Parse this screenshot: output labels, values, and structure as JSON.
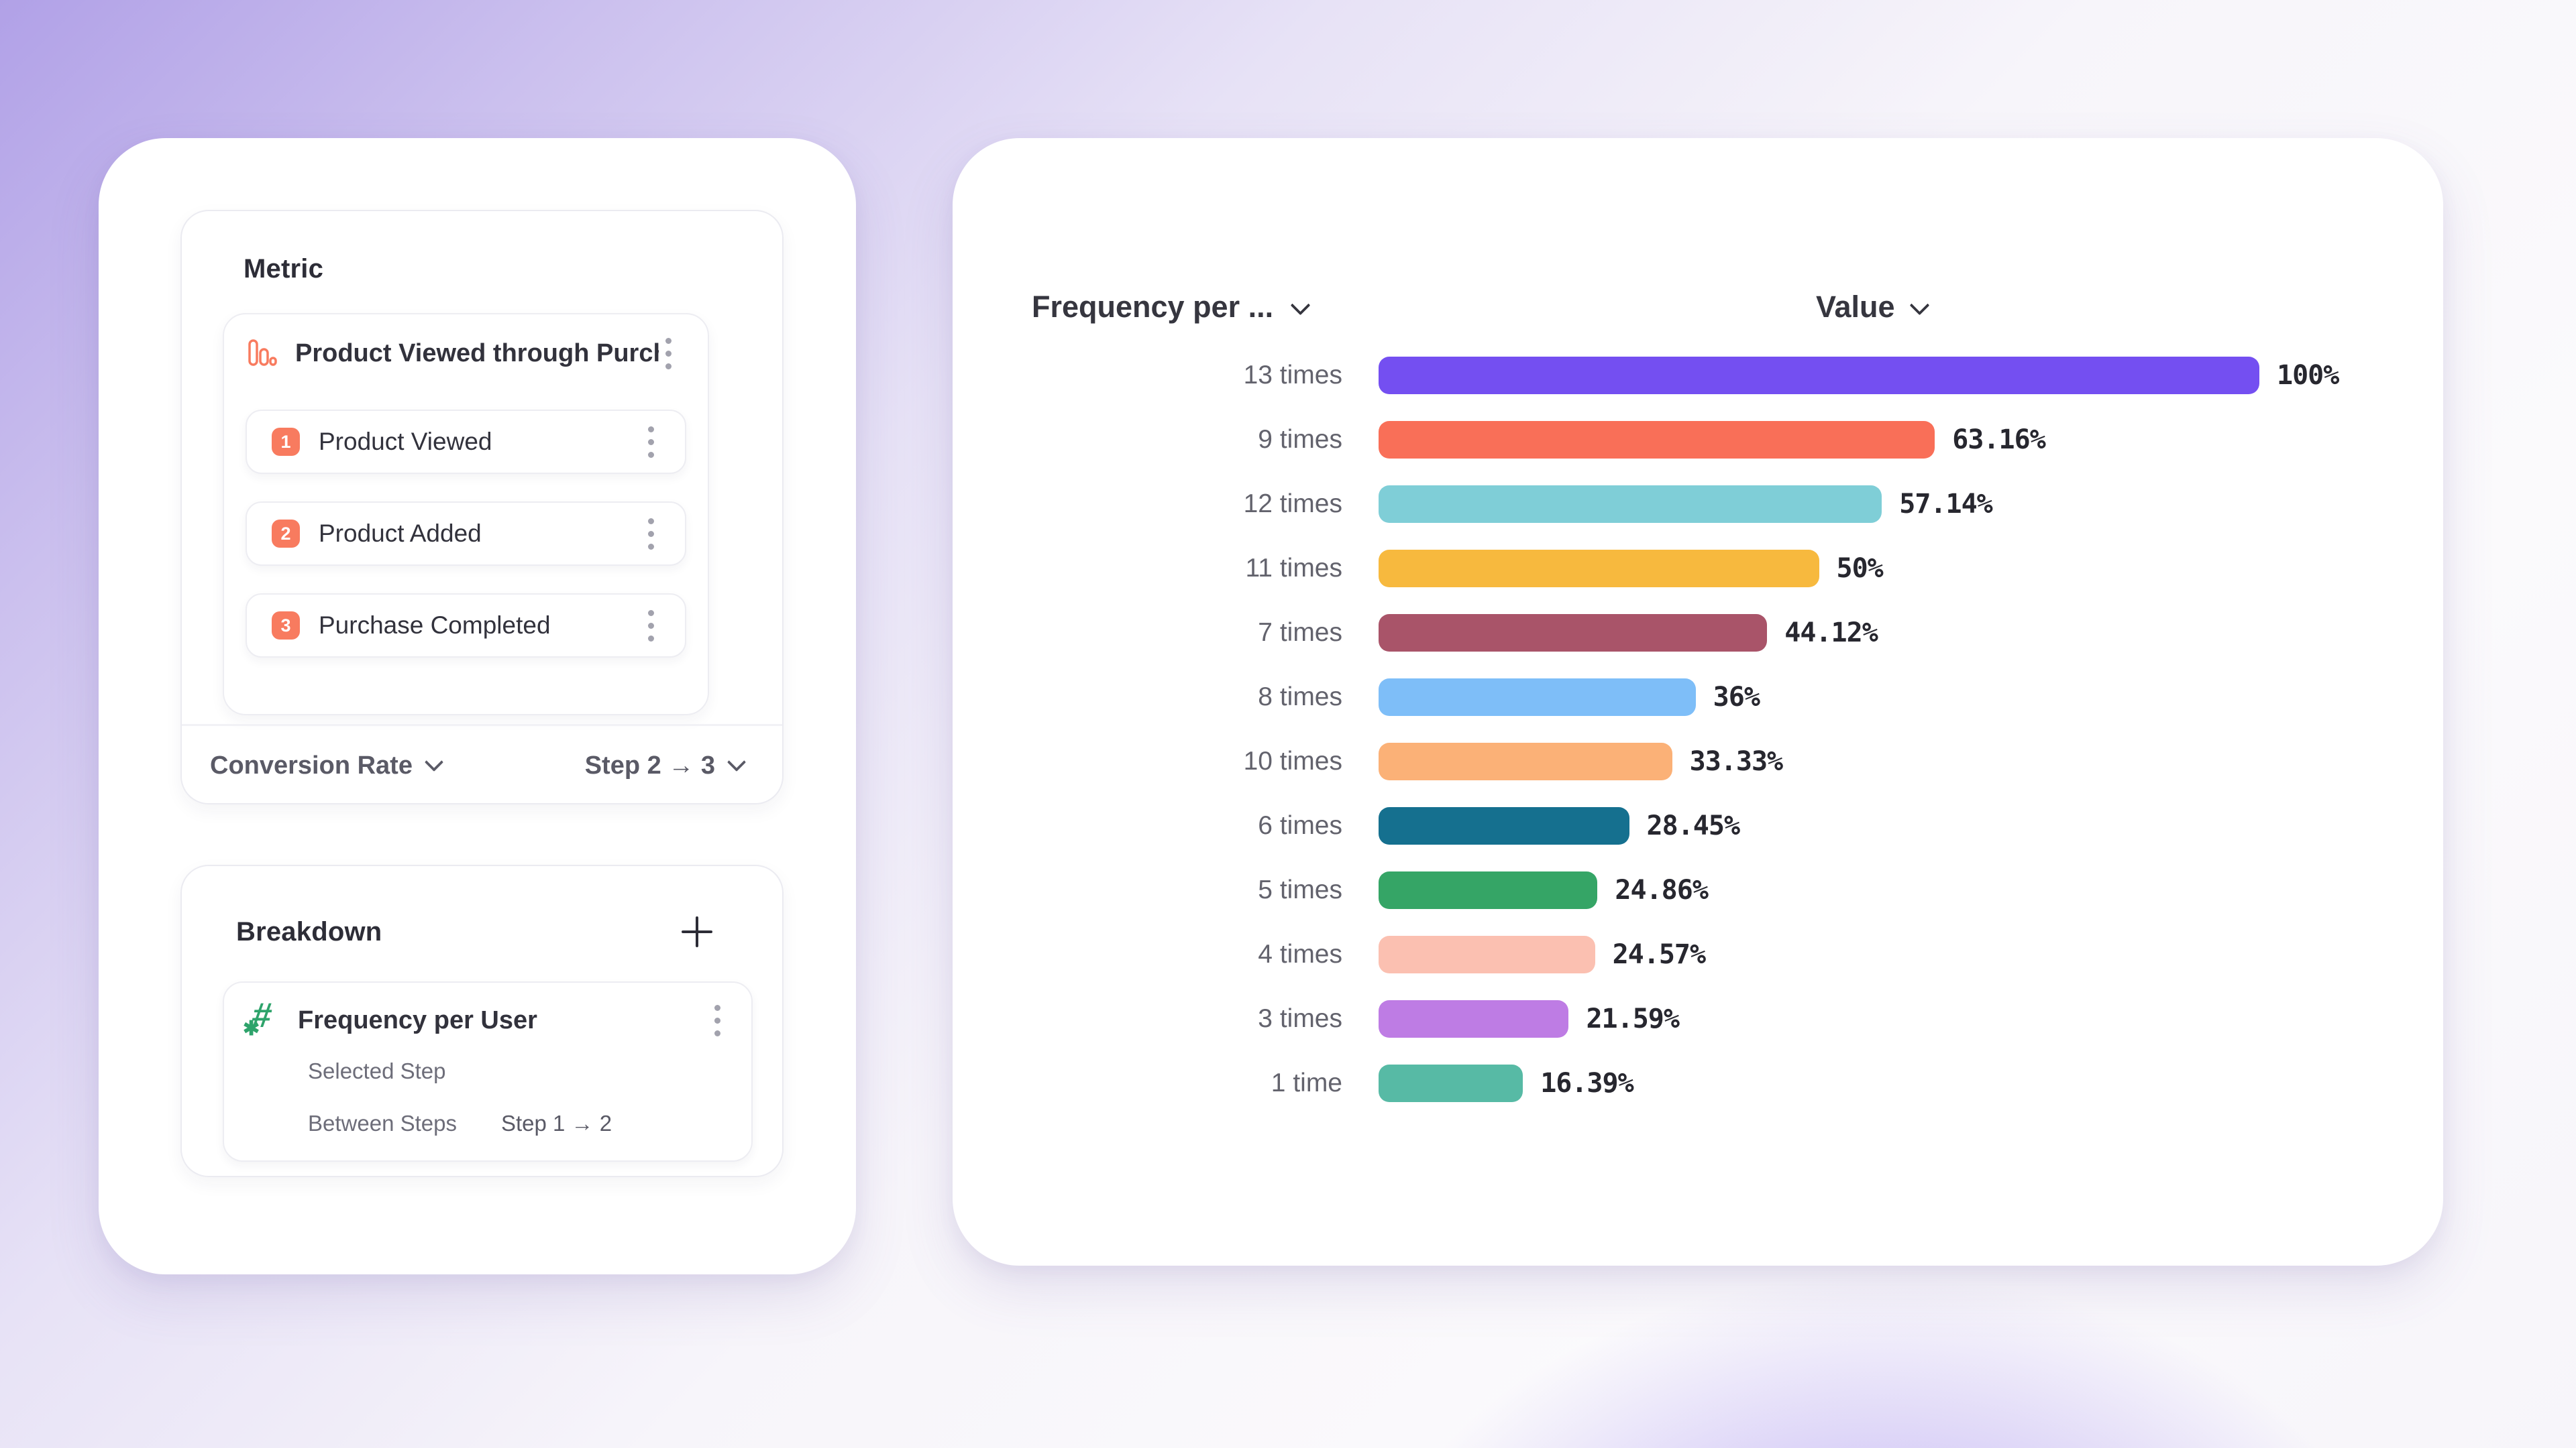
{
  "colors": {
    "accent_coral": "#F87B5F",
    "accent_green": "#2EA36B",
    "card_background": "#FFFFFF",
    "text_dark": "#32323C",
    "text_gray": "#63636D",
    "background_purple": "#B1A1E7"
  },
  "left_panel": {
    "metric": {
      "title": "Metric",
      "funnel": {
        "icon": "bar-chart-icon",
        "name": "Product Viewed through Purch...",
        "steps": [
          {
            "number": "1",
            "label": "Product Viewed"
          },
          {
            "number": "2",
            "label": "Product Added"
          },
          {
            "number": "3",
            "label": "Purchase Completed"
          }
        ]
      },
      "footer": {
        "conversion_label": "Conversion Rate",
        "step_range": "Step 2 → 3"
      }
    },
    "breakdown": {
      "title": "Breakdown",
      "item": {
        "icon": "hash-sparkle-icon",
        "hash_glyph": "#",
        "spark_glyph": "✱",
        "name": "Frequency per User",
        "selected_step_label": "Selected Step",
        "between_steps_label": "Between Steps",
        "between_steps_value": "Step 1 → 2"
      }
    }
  },
  "chart_data": {
    "type": "bar",
    "orientation": "horizontal",
    "title": "",
    "header": {
      "category_label": "Frequency per ...",
      "value_label": "Value"
    },
    "xlim": [
      0,
      100
    ],
    "value_unit": "%",
    "grid": false,
    "legend": false,
    "categories": [
      "13 times",
      "9 times",
      "12 times",
      "11 times",
      "7 times",
      "8 times",
      "10 times",
      "6 times",
      "5 times",
      "4 times",
      "3 times",
      "1 time"
    ],
    "values": [
      100,
      63.16,
      57.14,
      50,
      44.12,
      36,
      33.33,
      28.45,
      24.86,
      24.57,
      21.59,
      16.39
    ],
    "rows": [
      {
        "label": "13 times",
        "percent": 100,
        "percent_label": "100%",
        "color": "#744FF1"
      },
      {
        "label": "9 times",
        "percent": 63.16,
        "percent_label": "63.16%",
        "color": "#F96F58"
      },
      {
        "label": "12 times",
        "percent": 57.14,
        "percent_label": "57.14%",
        "color": "#7FCED7"
      },
      {
        "label": "11 times",
        "percent": 50,
        "percent_label": "50%",
        "color": "#F7B93E"
      },
      {
        "label": "7 times",
        "percent": 44.12,
        "percent_label": "44.12%",
        "color": "#A95469"
      },
      {
        "label": "8 times",
        "percent": 36,
        "percent_label": "36%",
        "color": "#7EBEF8"
      },
      {
        "label": "10 times",
        "percent": 33.33,
        "percent_label": "33.33%",
        "color": "#FBB177"
      },
      {
        "label": "6 times",
        "percent": 28.45,
        "percent_label": "28.45%",
        "color": "#15708F"
      },
      {
        "label": "5 times",
        "percent": 24.86,
        "percent_label": "24.86%",
        "color": "#35A566"
      },
      {
        "label": "4 times",
        "percent": 24.57,
        "percent_label": "24.57%",
        "color": "#FBC0B1"
      },
      {
        "label": "3 times",
        "percent": 21.59,
        "percent_label": "21.59%",
        "color": "#BE7CE4"
      },
      {
        "label": "1 time",
        "percent": 16.39,
        "percent_label": "16.39%",
        "color": "#57BAA5"
      }
    ]
  }
}
